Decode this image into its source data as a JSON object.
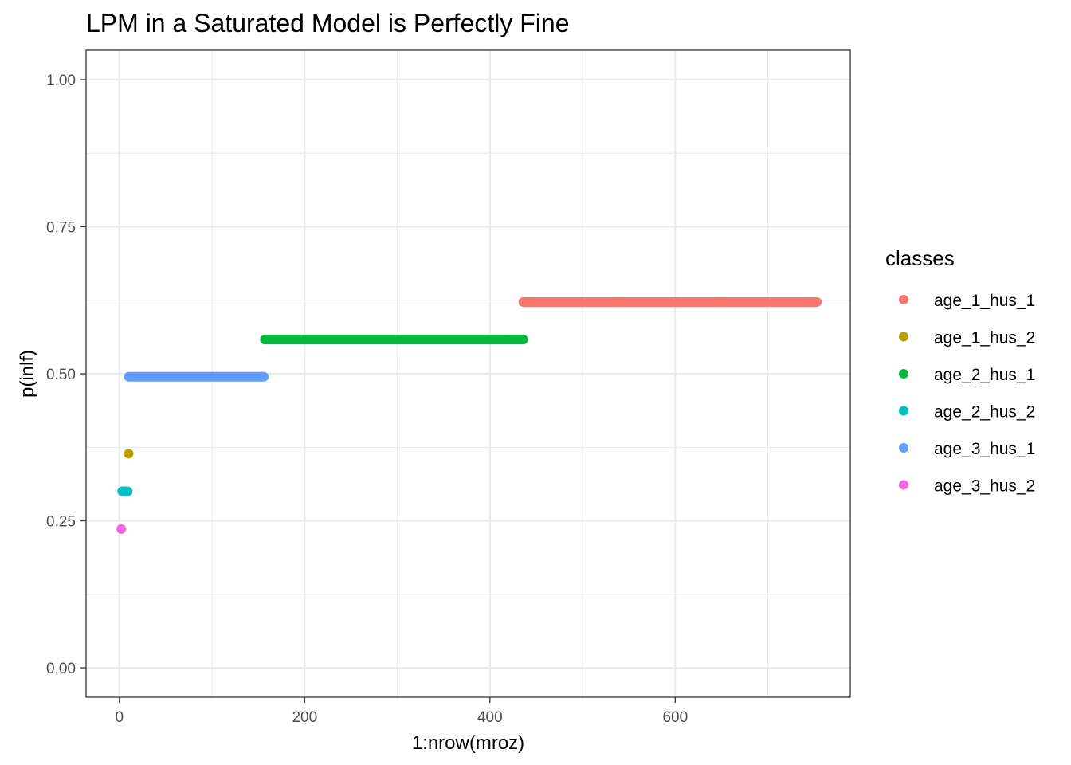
{
  "chart_data": {
    "type": "scatter",
    "title": "LPM in a Saturated Model is Perfectly Fine",
    "xlabel": "1:nrow(mroz)",
    "ylabel": "p(inlf)",
    "xlim": [
      -36,
      789
    ],
    "ylim": [
      -0.05,
      1.05
    ],
    "x_ticks": [
      0,
      200,
      400,
      600
    ],
    "x_tick_labels": [
      "0",
      "200",
      "400",
      "600"
    ],
    "y_ticks": [
      0,
      0.25,
      0.5,
      0.75,
      1
    ],
    "y_tick_labels": [
      "0.00",
      "0.25",
      "0.50",
      "0.75",
      "1.00"
    ],
    "x_minor_ticks": [
      100,
      300,
      500,
      700
    ],
    "y_minor_ticks": [
      0.125,
      0.375,
      0.625,
      0.875
    ],
    "grid": true,
    "legend": {
      "title": "classes",
      "placement": "right"
    },
    "series": [
      {
        "name": "age_1_hus_1",
        "color": "#F8766D",
        "y": 0.622,
        "x_start": 436,
        "x_end": 753
      },
      {
        "name": "age_1_hus_2",
        "color": "#B79F00",
        "y": 0.364,
        "x_start": 10,
        "x_end": 10
      },
      {
        "name": "age_2_hus_1",
        "color": "#00BA38",
        "y": 0.558,
        "x_start": 157,
        "x_end": 436
      },
      {
        "name": "age_2_hus_2",
        "color": "#00BFC4",
        "y": 0.3,
        "x_start": 3,
        "x_end": 9
      },
      {
        "name": "age_3_hus_1",
        "color": "#619CFF",
        "y": 0.495,
        "x_start": 10,
        "x_end": 156
      },
      {
        "name": "age_3_hus_2",
        "color": "#F564E3",
        "y": 0.236,
        "x_start": 2,
        "x_end": 2
      }
    ]
  }
}
